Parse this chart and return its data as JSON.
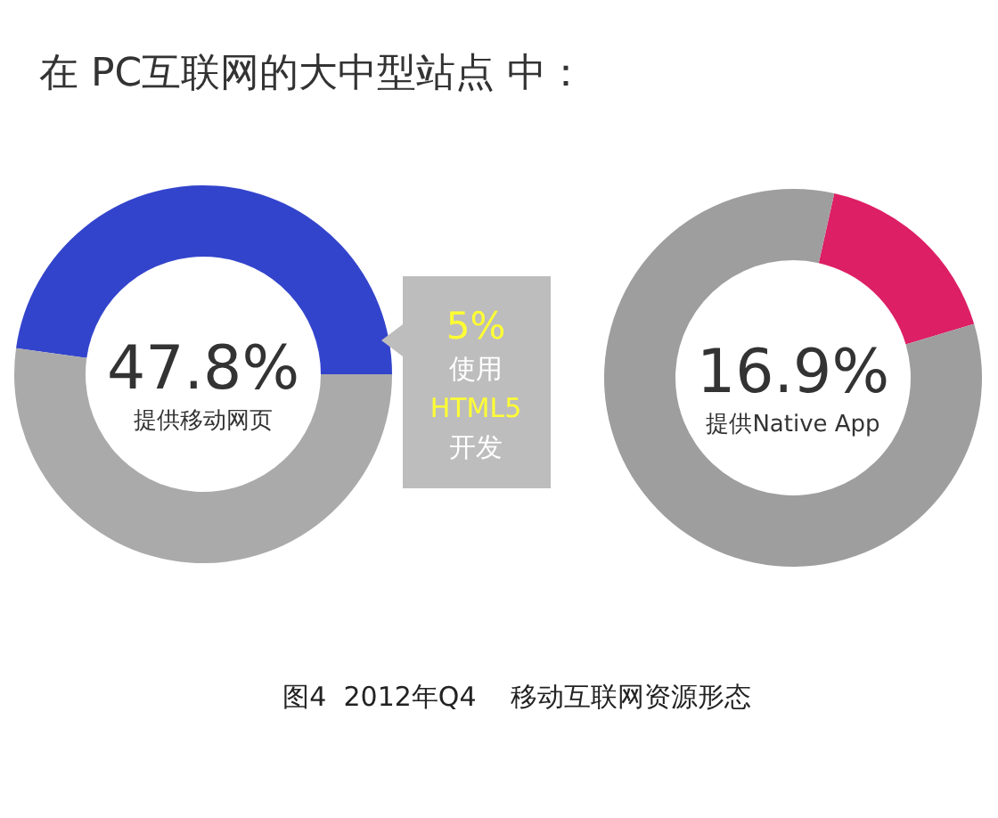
{
  "chart_data": [
    {
      "type": "donut",
      "title": "在 PC互联网的大中型站点 中：",
      "categories": [
        "提供移动网页",
        null
      ],
      "values": [
        47.8,
        52.2
      ],
      "colors": [
        "#3344cc",
        "#aaaaaa"
      ],
      "value_labels": [
        "47.8%",
        null
      ],
      "annotations": [
        "5% 使用 HTML5 开发"
      ]
    },
    {
      "type": "donut",
      "categories": [
        "提供Native App",
        null
      ],
      "values": [
        16.9,
        83.1
      ],
      "colors": [
        "#dd1f66",
        "#9e9e9e"
      ],
      "value_labels": [
        "16.9%",
        null
      ],
      "annotations": [
        "图4  2012年Q4    移动互联网资源形态"
      ]
    }
  ]
}
